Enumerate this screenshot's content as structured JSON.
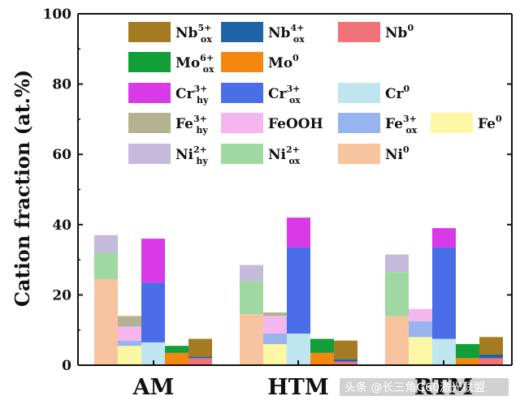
{
  "chart_data": {
    "type": "bar",
    "stacked": true,
    "categories": [
      "AM",
      "HTM",
      "RTM"
    ],
    "ylabel": "Cation fraction (at.%)",
    "xlabel": "",
    "ylim": [
      0,
      100
    ],
    "yticks": [
      0,
      20,
      40,
      60,
      80,
      100
    ],
    "legend_placement": "top",
    "series": [
      {
        "key": "Nb5ox",
        "base": "Nb",
        "sup": "5+",
        "sub": "ox",
        "color": "#a57b22"
      },
      {
        "key": "Nb4ox",
        "base": "Nb",
        "sup": "4+",
        "sub": "ox",
        "color": "#1f63a5"
      },
      {
        "key": "Nb0",
        "base": "Nb",
        "sup": "0",
        "sub": "",
        "color": "#f0727a"
      },
      {
        "key": "Mo6ox",
        "base": "Mo",
        "sup": "6+",
        "sub": "ox",
        "color": "#11a037"
      },
      {
        "key": "Mo0",
        "base": "Mo",
        "sup": "0",
        "sub": "",
        "color": "#f5870f"
      },
      {
        "key": "Cr3hy",
        "base": "Cr",
        "sup": "3+",
        "sub": "hy",
        "color": "#d73ae6"
      },
      {
        "key": "Cr3ox",
        "base": "Cr",
        "sup": "3+",
        "sub": "ox",
        "color": "#4a6de8"
      },
      {
        "key": "Cr0",
        "base": "Cr",
        "sup": "0",
        "sub": "",
        "color": "#bfe6ef"
      },
      {
        "key": "Fe3hy",
        "base": "Fe",
        "sup": "3+",
        "sub": "hy",
        "color": "#b3b392"
      },
      {
        "key": "FeOOH",
        "base": "FeOOH",
        "sup": "",
        "sub": "",
        "color": "#f5b5ed"
      },
      {
        "key": "Fe3ox",
        "base": "Fe",
        "sup": "3+",
        "sub": "ox",
        "color": "#98b4ef"
      },
      {
        "key": "Fe0",
        "base": "Fe",
        "sup": "0",
        "sub": "",
        "color": "#fbf7a5"
      },
      {
        "key": "Ni2hy",
        "base": "Ni",
        "sup": "2+",
        "sub": "hy",
        "color": "#c5b9dc"
      },
      {
        "key": "Ni2ox",
        "base": "Ni",
        "sup": "2+",
        "sub": "ox",
        "color": "#9fd8a0"
      },
      {
        "key": "Ni0",
        "base": "Ni",
        "sup": "0",
        "sub": "",
        "color": "#f8c4a0"
      }
    ],
    "groups": [
      {
        "category": "AM",
        "bars": [
          {
            "element": "Ni",
            "segments": [
              {
                "key": "Ni0",
                "value": 24.5
              },
              {
                "key": "Ni2ox",
                "value": 7.5
              },
              {
                "key": "Ni2hy",
                "value": 5
              }
            ]
          },
          {
            "element": "Fe",
            "segments": [
              {
                "key": "Fe0",
                "value": 5.5
              },
              {
                "key": "Fe3ox",
                "value": 1.5
              },
              {
                "key": "FeOOH",
                "value": 4
              },
              {
                "key": "Fe3hy",
                "value": 3
              }
            ]
          },
          {
            "element": "Cr",
            "segments": [
              {
                "key": "Cr0",
                "value": 6.5
              },
              {
                "key": "Cr3ox",
                "value": 17
              },
              {
                "key": "Cr3hy",
                "value": 12.5
              }
            ]
          },
          {
            "element": "Mo",
            "segments": [
              {
                "key": "Mo0",
                "value": 3.5
              },
              {
                "key": "Mo6ox",
                "value": 2
              }
            ]
          },
          {
            "element": "Nb",
            "segments": [
              {
                "key": "Nb0",
                "value": 2
              },
              {
                "key": "Nb4ox",
                "value": 0.5
              },
              {
                "key": "Nb5ox",
                "value": 5
              }
            ]
          }
        ]
      },
      {
        "category": "HTM",
        "bars": [
          {
            "element": "Ni",
            "segments": [
              {
                "key": "Ni0",
                "value": 14.5
              },
              {
                "key": "Ni2ox",
                "value": 9.5
              },
              {
                "key": "Ni2hy",
                "value": 4.5
              }
            ]
          },
          {
            "element": "Fe",
            "segments": [
              {
                "key": "Fe0",
                "value": 6
              },
              {
                "key": "Fe3ox",
                "value": 3
              },
              {
                "key": "FeOOH",
                "value": 5
              },
              {
                "key": "Fe3hy",
                "value": 1
              }
            ]
          },
          {
            "element": "Cr",
            "segments": [
              {
                "key": "Cr0",
                "value": 9
              },
              {
                "key": "Cr3ox",
                "value": 24.5
              },
              {
                "key": "Cr3hy",
                "value": 8.5
              }
            ]
          },
          {
            "element": "Mo",
            "segments": [
              {
                "key": "Mo0",
                "value": 3.5
              },
              {
                "key": "Mo6ox",
                "value": 4
              }
            ]
          },
          {
            "element": "Nb",
            "segments": [
              {
                "key": "Nb0",
                "value": 1
              },
              {
                "key": "Nb4ox",
                "value": 0.7
              },
              {
                "key": "Nb5ox",
                "value": 5.3
              }
            ]
          }
        ]
      },
      {
        "category": "RTM",
        "bars": [
          {
            "element": "Ni",
            "segments": [
              {
                "key": "Ni0",
                "value": 14
              },
              {
                "key": "Ni2ox",
                "value": 12.5
              },
              {
                "key": "Ni2hy",
                "value": 5
              }
            ]
          },
          {
            "element": "Fe",
            "segments": [
              {
                "key": "Fe0",
                "value": 8
              },
              {
                "key": "Fe3ox",
                "value": 4.5
              },
              {
                "key": "FeOOH",
                "value": 3.5
              }
            ]
          },
          {
            "element": "Cr",
            "segments": [
              {
                "key": "Cr0",
                "value": 7.5
              },
              {
                "key": "Cr3ox",
                "value": 26
              },
              {
                "key": "Cr3hy",
                "value": 5.5
              }
            ]
          },
          {
            "element": "Mo",
            "segments": [
              {
                "key": "Mo0",
                "value": 2
              },
              {
                "key": "Mo6ox",
                "value": 4
              }
            ]
          },
          {
            "element": "Nb",
            "segments": [
              {
                "key": "Nb0",
                "value": 2
              },
              {
                "key": "Nb4ox",
                "value": 1
              },
              {
                "key": "Nb5ox",
                "value": 5
              }
            ]
          }
        ]
      }
    ]
  },
  "watermark": "头条 @长三角G60激光联盟"
}
